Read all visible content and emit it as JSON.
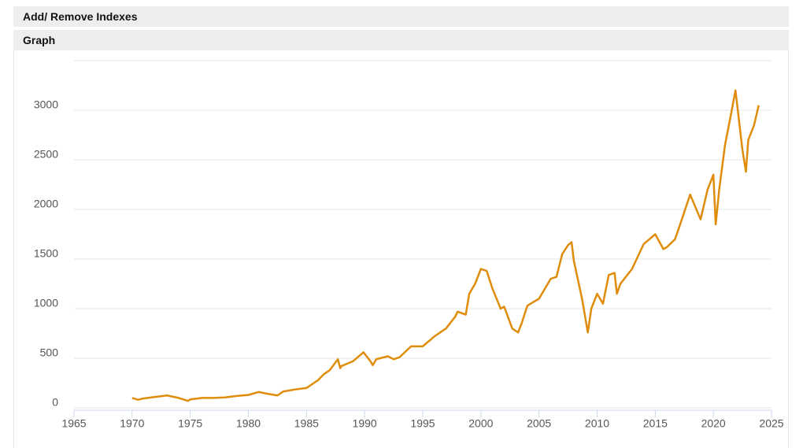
{
  "header_title": "Add/ Remove Indexes",
  "section_title": "Graph",
  "chart_data": {
    "type": "line",
    "x": [
      1970,
      1970.5,
      1971,
      1972,
      1973,
      1974,
      1974.8,
      1975,
      1976,
      1977,
      1978,
      1979,
      1980,
      1980.9,
      1981.5,
      1982.5,
      1983,
      1984,
      1985,
      1986,
      1986.5,
      1987,
      1987.7,
      1987.9,
      1988,
      1989,
      1989.9,
      1990.5,
      1990.7,
      1991,
      1992,
      1992.5,
      1993,
      1994,
      1995,
      1996,
      1997,
      1997.8,
      1998,
      1998.7,
      1999,
      1999.5,
      2000,
      2000.5,
      2001,
      2001.7,
      2002,
      2002.7,
      2003.2,
      2003.5,
      2004,
      2005,
      2006,
      2006.5,
      2007,
      2007.5,
      2007.8,
      2008,
      2008.7,
      2009.2,
      2009.5,
      2010,
      2010.5,
      2011,
      2011.5,
      2011.7,
      2012,
      2013,
      2014,
      2015,
      2015.7,
      2016,
      2016.7,
      2017,
      2018,
      2018.9,
      2019.5,
      2020,
      2020.2,
      2020.5,
      2021,
      2021.5,
      2021.9,
      2022.5,
      2022.8,
      2023,
      2023.5,
      2023.9
    ],
    "series": [
      {
        "color": "#e08c0b",
        "values": [
          100,
          82,
          95,
          110,
          125,
          100,
          70,
          85,
          100,
          100,
          105,
          120,
          130,
          160,
          145,
          125,
          165,
          185,
          200,
          280,
          340,
          380,
          490,
          400,
          420,
          470,
          560,
          470,
          430,
          490,
          520,
          490,
          510,
          620,
          620,
          720,
          800,
          920,
          970,
          940,
          1150,
          1250,
          1400,
          1380,
          1200,
          1000,
          1020,
          800,
          760,
          850,
          1030,
          1100,
          1300,
          1320,
          1550,
          1640,
          1670,
          1480,
          1100,
          760,
          1000,
          1150,
          1050,
          1340,
          1360,
          1150,
          1250,
          1400,
          1650,
          1750,
          1600,
          1620,
          1700,
          1800,
          2150,
          1900,
          2200,
          2350,
          1850,
          2200,
          2650,
          2950,
          3200,
          2600,
          2380,
          2700,
          2850,
          3050
        ]
      }
    ],
    "xlim": [
      1965,
      2025
    ],
    "xticks": [
      1965,
      1970,
      1975,
      1980,
      1985,
      1990,
      1995,
      2000,
      2005,
      2010,
      2015,
      2020,
      2025
    ],
    "ylim": [
      0,
      3500
    ],
    "yticks": [
      0,
      500,
      1000,
      1500,
      2000,
      2500,
      3000
    ],
    "grid": true
  }
}
